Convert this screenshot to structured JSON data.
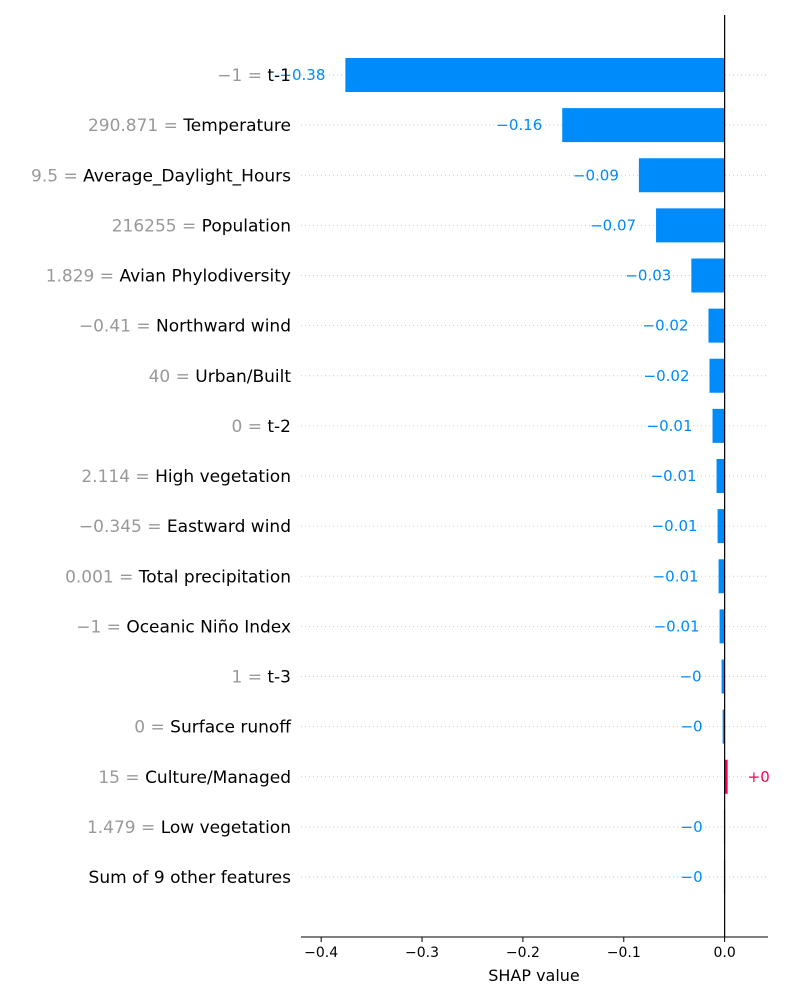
{
  "chart_data": {
    "type": "bar",
    "orientation": "horizontal",
    "title": "",
    "xlabel": "SHAP value",
    "ylabel": "",
    "xlim": [
      -0.42,
      0.043
    ],
    "x_ticks": [
      -0.4,
      -0.3,
      -0.2,
      -0.1,
      0.0
    ],
    "x_tick_labels": [
      "−0.4",
      "−0.3",
      "−0.2",
      "−0.1",
      "0.0"
    ],
    "grid": false,
    "row_gridlines": "dotted",
    "colors": {
      "negative": "#008bfb",
      "positive": "#ff0051",
      "negative_faint": "#c9e7ff",
      "other_features": "#d9d9d9",
      "feature_value_text": "#999999"
    },
    "rows": [
      {
        "feature_value": "−1",
        "feature": "t-1",
        "shap": -0.376,
        "label": "−0.38",
        "color": "negative"
      },
      {
        "feature_value": "290.871",
        "feature": "Temperature",
        "shap": -0.161,
        "label": "−0.16",
        "color": "negative"
      },
      {
        "feature_value": "9.5",
        "feature": "Average_Daylight_Hours",
        "shap": -0.085,
        "label": "−0.09",
        "color": "negative"
      },
      {
        "feature_value": "216255",
        "feature": "Population",
        "shap": -0.068,
        "label": "−0.07",
        "color": "negative"
      },
      {
        "feature_value": "1.829",
        "feature": "Avian Phylodiversity",
        "shap": -0.033,
        "label": "−0.03",
        "color": "negative"
      },
      {
        "feature_value": "−0.41",
        "feature": "Northward wind",
        "shap": -0.016,
        "label": "−0.02",
        "color": "negative"
      },
      {
        "feature_value": "40",
        "feature": "Urban/Built",
        "shap": -0.015,
        "label": "−0.02",
        "color": "negative"
      },
      {
        "feature_value": "0",
        "feature": "t-2",
        "shap": -0.012,
        "label": "−0.01",
        "color": "negative"
      },
      {
        "feature_value": "2.114",
        "feature": "High vegetation",
        "shap": -0.008,
        "label": "−0.01",
        "color": "negative"
      },
      {
        "feature_value": "−0.345",
        "feature": "Eastward wind",
        "shap": -0.007,
        "label": "−0.01",
        "color": "negative"
      },
      {
        "feature_value": "0.001",
        "feature": "Total precipitation",
        "shap": -0.006,
        "label": "−0.01",
        "color": "negative"
      },
      {
        "feature_value": "−1",
        "feature": "Oceanic Niño Index",
        "shap": -0.005,
        "label": "−0.01",
        "color": "negative"
      },
      {
        "feature_value": "1",
        "feature": "t-3",
        "shap": -0.003,
        "label": "−0",
        "color": "negative"
      },
      {
        "feature_value": "0",
        "feature": "Surface runoff",
        "shap": -0.002,
        "label": "−0",
        "color": "negative"
      },
      {
        "feature_value": "15",
        "feature": "Culture/Managed",
        "shap": 0.003,
        "label": "+0",
        "color": "positive"
      },
      {
        "feature_value": "1.479",
        "feature": "Low vegetation",
        "shap": -0.001,
        "label": "−0",
        "color": "negative_faint"
      },
      {
        "feature_value": "",
        "feature": "Sum of 9 other features",
        "shap": -0.001,
        "label": "−0",
        "color": "other_features"
      }
    ]
  }
}
